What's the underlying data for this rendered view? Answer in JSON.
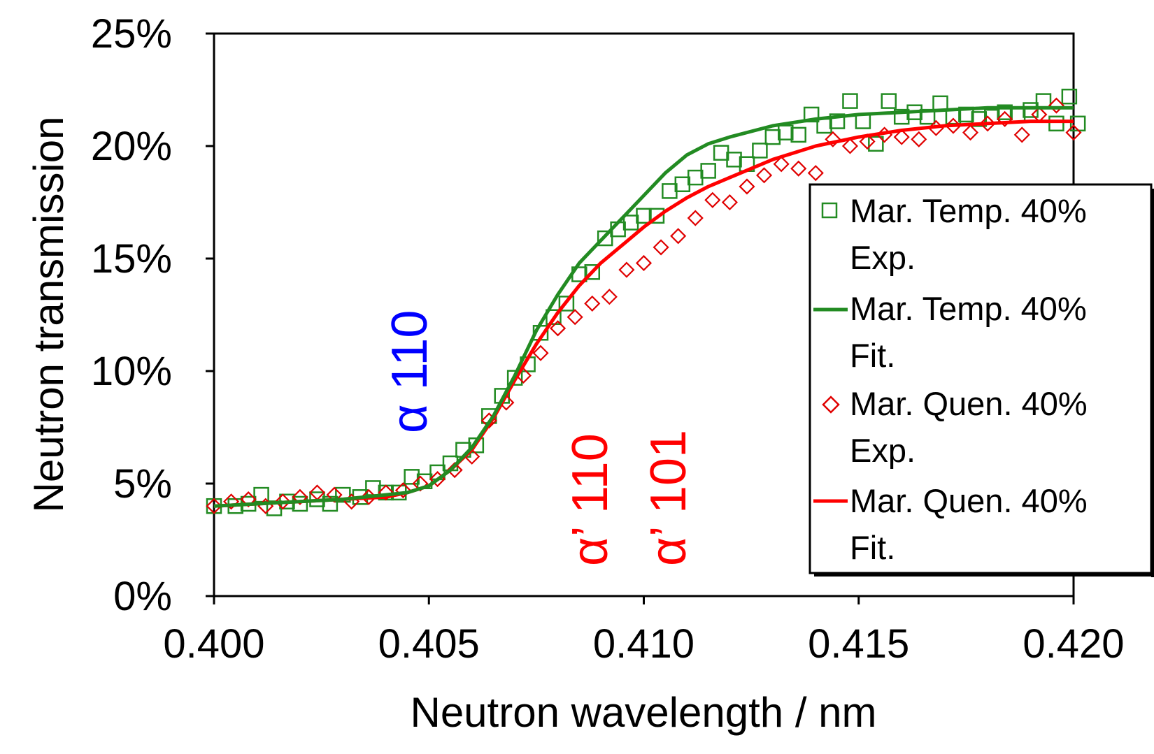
{
  "chart_data": {
    "type": "line",
    "title": "",
    "xlabel": "Neutron wavelength / nm",
    "ylabel": "Neutron transmission",
    "xlim": [
      0.4,
      0.42
    ],
    "ylim": [
      0,
      25
    ],
    "x_ticks": [
      "0.400",
      "0.405",
      "0.410",
      "0.415",
      "0.420"
    ],
    "y_ticks": [
      "0%",
      "5%",
      "10%",
      "15%",
      "20%",
      "25%"
    ],
    "grid": false,
    "legend_position": "right",
    "annotations": [
      {
        "text": "α 110",
        "x": 0.4047,
        "y": 13,
        "color": "#0000ff"
      },
      {
        "text": "α’ 110",
        "x": 0.4086,
        "y": 7,
        "color": "#ff0000"
      },
      {
        "text": "α’ 101",
        "x": 0.4104,
        "y": 7,
        "color": "#ff0000"
      }
    ],
    "series": [
      {
        "name": "Mar. Temp. 40% Exp.",
        "kind": "scatter",
        "marker": "square",
        "color": "#228b22",
        "x": [
          0.4,
          0.4005,
          0.4008,
          0.4011,
          0.4014,
          0.4017,
          0.402,
          0.4024,
          0.4027,
          0.403,
          0.4034,
          0.4037,
          0.404,
          0.4043,
          0.4046,
          0.4049,
          0.4052,
          0.4055,
          0.4058,
          0.4061,
          0.4064,
          0.4067,
          0.407,
          0.4073,
          0.4076,
          0.4079,
          0.4082,
          0.4085,
          0.4088,
          0.4091,
          0.4094,
          0.4097,
          0.41,
          0.4103,
          0.4106,
          0.4109,
          0.4112,
          0.4115,
          0.4118,
          0.4121,
          0.4124,
          0.4127,
          0.413,
          0.4133,
          0.4136,
          0.4139,
          0.4142,
          0.4145,
          0.4148,
          0.4151,
          0.4154,
          0.4157,
          0.416,
          0.4163,
          0.4166,
          0.4169,
          0.4172,
          0.4175,
          0.4178,
          0.4181,
          0.4184,
          0.4187,
          0.419,
          0.4193,
          0.4196,
          0.4199,
          0.4201
        ],
        "y": [
          4.0,
          4.0,
          4.1,
          4.5,
          3.9,
          4.2,
          4.1,
          4.3,
          4.1,
          4.5,
          4.4,
          4.8,
          4.6,
          4.6,
          5.3,
          5.1,
          5.5,
          5.9,
          6.5,
          6.7,
          8.0,
          8.9,
          9.7,
          10.3,
          11.7,
          12.4,
          13.0,
          14.3,
          14.4,
          15.9,
          16.3,
          16.6,
          16.9,
          16.9,
          18.0,
          18.3,
          18.6,
          18.9,
          19.7,
          19.4,
          19.2,
          19.8,
          20.4,
          20.6,
          20.5,
          21.4,
          20.9,
          21.1,
          22.0,
          21.1,
          20.1,
          22.0,
          21.3,
          21.5,
          21.3,
          21.9,
          21.3,
          21.4,
          21.2,
          21.3,
          21.5,
          21.4,
          21.6,
          22.0,
          21.0,
          22.2,
          21.0
        ]
      },
      {
        "name": "Mar. Temp. 40% Fit.",
        "kind": "line",
        "color": "#228b22",
        "x": [
          0.4,
          0.401,
          0.402,
          0.403,
          0.404,
          0.4045,
          0.405,
          0.4055,
          0.406,
          0.4065,
          0.407,
          0.4075,
          0.408,
          0.4085,
          0.409,
          0.4095,
          0.41,
          0.4105,
          0.411,
          0.4115,
          0.412,
          0.413,
          0.414,
          0.415,
          0.416,
          0.417,
          0.418,
          0.419,
          0.42
        ],
        "y": [
          4.0,
          4.1,
          4.2,
          4.3,
          4.5,
          4.6,
          4.9,
          5.6,
          6.6,
          8.0,
          9.8,
          11.8,
          13.4,
          14.8,
          15.8,
          16.8,
          17.8,
          18.8,
          19.6,
          20.1,
          20.4,
          20.9,
          21.2,
          21.4,
          21.5,
          21.6,
          21.7,
          21.7,
          21.7
        ]
      },
      {
        "name": "Mar. Quen. 40% Exp.",
        "kind": "scatter",
        "marker": "diamond",
        "color": "#e00000",
        "x": [
          0.4,
          0.4004,
          0.4008,
          0.4012,
          0.4016,
          0.402,
          0.4024,
          0.4028,
          0.4032,
          0.4036,
          0.404,
          0.4044,
          0.4048,
          0.4052,
          0.4056,
          0.406,
          0.4064,
          0.4068,
          0.4072,
          0.4076,
          0.408,
          0.4084,
          0.4088,
          0.4092,
          0.4096,
          0.41,
          0.4104,
          0.4108,
          0.4112,
          0.4116,
          0.412,
          0.4124,
          0.4128,
          0.4132,
          0.4136,
          0.414,
          0.4144,
          0.4148,
          0.4152,
          0.4156,
          0.416,
          0.4164,
          0.4168,
          0.4172,
          0.4176,
          0.418,
          0.4184,
          0.4188,
          0.4192,
          0.4196,
          0.42
        ],
        "y": [
          4.0,
          4.2,
          4.3,
          4.0,
          4.2,
          4.4,
          4.6,
          4.5,
          4.2,
          4.4,
          4.6,
          4.7,
          5.0,
          5.2,
          5.6,
          6.2,
          7.8,
          8.6,
          9.8,
          10.8,
          11.9,
          12.4,
          13.0,
          13.3,
          14.5,
          14.8,
          15.5,
          16.0,
          16.8,
          17.6,
          17.5,
          18.2,
          18.7,
          19.2,
          19.0,
          18.8,
          20.3,
          20.0,
          20.2,
          20.5,
          20.4,
          20.3,
          20.8,
          20.9,
          20.6,
          21.0,
          21.2,
          20.5,
          21.4,
          21.8,
          20.6
        ]
      },
      {
        "name": "Mar. Quen. 40% Fit.",
        "kind": "line",
        "color": "#ff0000",
        "x": [
          0.4,
          0.401,
          0.402,
          0.403,
          0.404,
          0.4045,
          0.405,
          0.4055,
          0.406,
          0.4065,
          0.407,
          0.4075,
          0.408,
          0.4085,
          0.409,
          0.4095,
          0.41,
          0.4105,
          0.411,
          0.4115,
          0.412,
          0.413,
          0.414,
          0.415,
          0.416,
          0.417,
          0.418,
          0.419,
          0.42
        ],
        "y": [
          4.0,
          4.1,
          4.2,
          4.3,
          4.4,
          4.6,
          4.9,
          5.6,
          6.5,
          7.9,
          9.6,
          11.2,
          12.6,
          13.8,
          14.8,
          15.6,
          16.4,
          17.1,
          17.7,
          18.2,
          18.6,
          19.4,
          20.0,
          20.4,
          20.7,
          20.9,
          21.0,
          21.1,
          21.1
        ]
      }
    ]
  },
  "legend": [
    {
      "line1": "Mar. Temp. 40%",
      "line2": "Exp."
    },
    {
      "line1": "Mar. Temp. 40%",
      "line2": "Fit."
    },
    {
      "line1": "Mar. Quen. 40%",
      "line2": "Exp."
    },
    {
      "line1": "Mar. Quen. 40%",
      "line2": "Fit."
    }
  ]
}
